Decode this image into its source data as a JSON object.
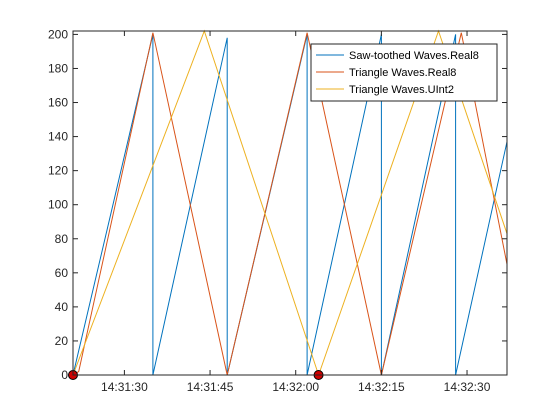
{
  "chart_data": {
    "type": "line",
    "title": "",
    "xlabel": "",
    "ylabel": "",
    "xlim": [
      "14:31:21",
      "14:32:37"
    ],
    "ylim": [
      0,
      202
    ],
    "grid": false,
    "legend_position": "top-right",
    "x_ticks": [
      "14:31:30",
      "14:31:45",
      "14:32:00",
      "14:32:15",
      "14:32:30"
    ],
    "y_ticks": [
      0,
      20,
      40,
      60,
      80,
      100,
      120,
      140,
      160,
      180,
      200
    ],
    "series": [
      {
        "name": "Saw-toothed Waves.Real8",
        "color": "#0072BD",
        "points": [
          [
            "14:31:21",
            0
          ],
          [
            "14:31:21",
            0
          ],
          [
            "14:31:35",
            200
          ],
          [
            "14:31:35",
            0
          ],
          [
            "14:31:48",
            198
          ],
          [
            "14:31:48",
            0
          ],
          [
            "14:32:02",
            200
          ],
          [
            "14:32:02",
            0
          ],
          [
            "14:32:15",
            200
          ],
          [
            "14:32:15",
            0
          ],
          [
            "14:32:28",
            200
          ],
          [
            "14:32:28",
            0
          ],
          [
            "14:32:37",
            137
          ]
        ]
      },
      {
        "name": "Triangle Waves.Real8",
        "color": "#D95319",
        "points": [
          [
            "14:31:21",
            0
          ],
          [
            "14:31:22",
            2
          ],
          [
            "14:31:35",
            201
          ],
          [
            "14:31:48",
            0
          ],
          [
            "14:32:02",
            201
          ],
          [
            "14:32:15",
            0
          ],
          [
            "14:32:29",
            201
          ],
          [
            "14:32:37",
            65
          ]
        ]
      },
      {
        "name": "Triangle Waves.UInt2",
        "color": "#EDB120",
        "points": [
          [
            "14:31:21",
            0
          ],
          [
            "14:31:44",
            202
          ],
          [
            "14:32:04",
            0
          ],
          [
            "14:32:25",
            202
          ],
          [
            "14:32:37",
            83
          ]
        ]
      }
    ],
    "markers": [
      {
        "x": "14:31:21",
        "y": 0,
        "color": "#d00000"
      },
      {
        "x": "14:32:04",
        "y": 0,
        "color": "#d00000"
      }
    ]
  }
}
